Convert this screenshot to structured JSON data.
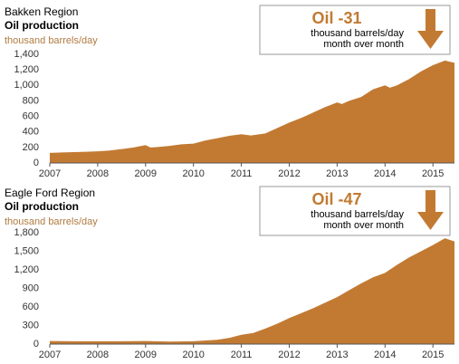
{
  "chart_data": [
    {
      "type": "area",
      "title": "Bakken Region",
      "subtitle": "Oil production",
      "ylabel": "thousand barrels/day",
      "annotation": {
        "headline": "Oil -31",
        "lines": [
          "thousand barrels/day",
          "month over month"
        ]
      },
      "color": "#c27a32",
      "x": [
        2007,
        2007.25,
        2007.5,
        2007.75,
        2008,
        2008.25,
        2008.5,
        2008.75,
        2009,
        2009.1,
        2009.25,
        2009.5,
        2009.75,
        2010,
        2010.25,
        2010.5,
        2010.75,
        2011,
        2011.2,
        2011.5,
        2011.75,
        2012,
        2012.25,
        2012.5,
        2012.75,
        2013,
        2013.1,
        2013.25,
        2013.5,
        2013.75,
        2014,
        2014.1,
        2014.25,
        2014.5,
        2014.75,
        2015,
        2015.25,
        2015.45
      ],
      "values": [
        130,
        135,
        140,
        145,
        150,
        160,
        180,
        200,
        230,
        200,
        205,
        220,
        240,
        250,
        290,
        320,
        350,
        370,
        355,
        380,
        450,
        520,
        580,
        650,
        720,
        780,
        760,
        800,
        850,
        950,
        1000,
        970,
        1000,
        1080,
        1180,
        1260,
        1320,
        1290
      ],
      "xlim": [
        2007,
        2015.45
      ],
      "xticks": [
        2007,
        2008,
        2009,
        2010,
        2011,
        2012,
        2013,
        2014,
        2015
      ],
      "ylim": [
        0,
        1400
      ],
      "yticks": [
        0,
        200,
        400,
        600,
        800,
        {
          "value": 1000,
          "label": "1,000"
        },
        {
          "value": 1200,
          "label": "1,200"
        },
        {
          "value": 1400,
          "label": "1,400"
        }
      ],
      "grid": false
    },
    {
      "type": "area",
      "title": "Eagle Ford Region",
      "subtitle": "Oil production",
      "ylabel": "thousand barrels/day",
      "annotation": {
        "headline": "Oil -47",
        "lines": [
          "thousand barrels/day",
          "month over month"
        ]
      },
      "color": "#c27a32",
      "x": [
        2007,
        2007.5,
        2008,
        2008.5,
        2009,
        2009.5,
        2010,
        2010.5,
        2010.75,
        2011,
        2011.25,
        2011.5,
        2011.75,
        2012,
        2012.25,
        2012.5,
        2012.75,
        2013,
        2013.25,
        2013.5,
        2013.75,
        2014,
        2014.25,
        2014.5,
        2014.75,
        2015,
        2015.25,
        2015.45
      ],
      "values": [
        50,
        45,
        45,
        45,
        50,
        40,
        45,
        70,
        100,
        150,
        180,
        250,
        330,
        420,
        500,
        580,
        670,
        760,
        870,
        980,
        1080,
        1150,
        1280,
        1400,
        1500,
        1600,
        1710,
        1660
      ],
      "xlim": [
        2007,
        2015.45
      ],
      "xticks": [
        2007,
        2008,
        2009,
        2010,
        2011,
        2012,
        2013,
        2014,
        2015
      ],
      "ylim": [
        0,
        1800
      ],
      "yticks": [
        0,
        300,
        600,
        900,
        {
          "value": 1200,
          "label": "1,200"
        },
        {
          "value": 1500,
          "label": "1,500"
        },
        {
          "value": 1800,
          "label": "1,800"
        }
      ],
      "grid": false
    }
  ]
}
